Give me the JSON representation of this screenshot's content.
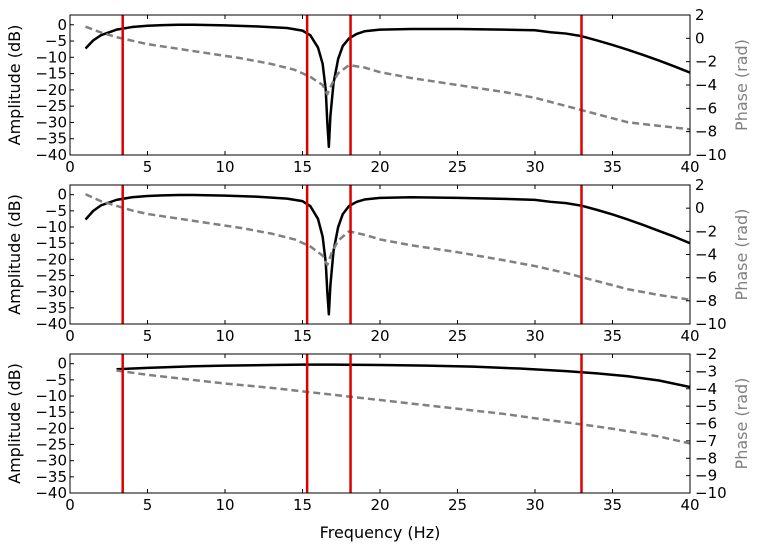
{
  "chart_data": [
    {
      "type": "line",
      "title": "",
      "xlabel": "",
      "ylabel": "Amplitude (dB)",
      "y2label": "Phase (rad)",
      "xlim": [
        0,
        40
      ],
      "ylim": [
        -40,
        3
      ],
      "y2lim": [
        -10,
        2
      ],
      "xticks": [
        0,
        5,
        10,
        15,
        20,
        25,
        30,
        35,
        40
      ],
      "xtick_labels": [
        "0",
        "5",
        "10",
        "15",
        "20",
        "25",
        "30",
        "35",
        "40"
      ],
      "yticks": [
        -40,
        -35,
        -30,
        -25,
        -20,
        -15,
        -10,
        -5,
        0
      ],
      "ytick_labels": [
        "−40",
        "−35",
        "−30",
        "−25",
        "−20",
        "−15",
        "−10",
        "−5",
        "0"
      ],
      "y2ticks": [
        -10,
        -8,
        -6,
        -4,
        -2,
        0,
        2
      ],
      "y2tick_labels": [
        "−10",
        "−8",
        "−6",
        "−4",
        "−2",
        "0",
        "2"
      ],
      "vlines": [
        3.4,
        15.3,
        18.1,
        33.0
      ],
      "colors": {
        "amplitude": "#000000",
        "phase": "#808080",
        "vlines": "#dd0000"
      },
      "series": [
        {
          "role": "amplitude",
          "axis": "left",
          "style": "solid",
          "x": [
            1.0,
            1.5,
            2.0,
            3.0,
            4.0,
            5.0,
            6.0,
            7.0,
            8.0,
            10.0,
            12.0,
            14.0,
            15.0,
            15.5,
            16.0,
            16.3,
            16.5,
            16.6,
            16.7,
            16.8,
            17.0,
            17.3,
            17.6,
            18.0,
            18.5,
            19.0,
            20.0,
            22.0,
            25.0,
            28.0,
            30.0,
            31.0,
            32.0,
            33.0,
            34.0,
            35.0,
            36.0,
            37.0,
            38.0,
            39.0,
            40.0
          ],
          "y": [
            -7.3,
            -4.8,
            -3.2,
            -1.5,
            -0.7,
            -0.3,
            -0.1,
            0.0,
            0.0,
            -0.2,
            -0.5,
            -1.0,
            -1.8,
            -3.2,
            -7.0,
            -12.0,
            -20.0,
            -30.0,
            -37.5,
            -28.0,
            -18.0,
            -10.5,
            -6.5,
            -4.2,
            -2.8,
            -2.0,
            -1.5,
            -1.3,
            -1.3,
            -1.5,
            -1.7,
            -2.3,
            -2.7,
            -3.5,
            -4.8,
            -6.2,
            -7.7,
            -9.3,
            -11.0,
            -12.8,
            -14.7
          ]
        },
        {
          "role": "phase",
          "axis": "right",
          "style": "dashed",
          "x": [
            1.0,
            2.0,
            3.0,
            4.0,
            5.0,
            7.0,
            9.0,
            11.0,
            13.0,
            14.5,
            15.5,
            16.3,
            16.6,
            16.9,
            17.3,
            18.0,
            19.0,
            20.0,
            22.0,
            25.0,
            28.0,
            30.0,
            32.0,
            34.0,
            36.0,
            38.0,
            40.0
          ],
          "y": [
            1.0,
            0.5,
            0.1,
            -0.2,
            -0.5,
            -0.9,
            -1.3,
            -1.7,
            -2.2,
            -2.7,
            -3.3,
            -4.0,
            -4.8,
            -3.9,
            -3.0,
            -2.3,
            -2.5,
            -2.9,
            -3.4,
            -4.0,
            -4.6,
            -5.1,
            -5.8,
            -6.5,
            -7.2,
            -7.5,
            -7.8
          ]
        }
      ]
    },
    {
      "type": "line",
      "title": "",
      "xlabel": "",
      "ylabel": "Amplitude (dB)",
      "y2label": "Phase (rad)",
      "xlim": [
        0,
        40
      ],
      "ylim": [
        -40,
        3
      ],
      "y2lim": [
        -10,
        2
      ],
      "xticks": [
        0,
        5,
        10,
        15,
        20,
        25,
        30,
        35,
        40
      ],
      "xtick_labels": [
        "0",
        "5",
        "10",
        "15",
        "20",
        "25",
        "30",
        "35",
        "40"
      ],
      "yticks": [
        -40,
        -35,
        -30,
        -25,
        -20,
        -15,
        -10,
        -5,
        0
      ],
      "ytick_labels": [
        "−40",
        "−35",
        "−30",
        "−25",
        "−20",
        "−15",
        "−10",
        "−5",
        "0"
      ],
      "y2ticks": [
        -10,
        -8,
        -6,
        -4,
        -2,
        0,
        2
      ],
      "y2tick_labels": [
        "−10",
        "−8",
        "−6",
        "−4",
        "−2",
        "0",
        "2"
      ],
      "vlines": [
        3.4,
        15.3,
        18.1,
        33.0
      ],
      "colors": {
        "amplitude": "#000000",
        "phase": "#808080",
        "vlines": "#dd0000"
      },
      "series": [
        {
          "role": "amplitude",
          "axis": "left",
          "style": "solid",
          "x": [
            1.0,
            1.5,
            2.0,
            3.0,
            4.0,
            5.0,
            6.0,
            7.0,
            8.0,
            10.0,
            12.0,
            14.0,
            15.0,
            15.5,
            16.0,
            16.3,
            16.5,
            16.6,
            16.7,
            16.8,
            17.0,
            17.3,
            17.6,
            18.0,
            18.5,
            19.0,
            20.0,
            22.0,
            25.0,
            28.0,
            30.0,
            31.0,
            32.0,
            33.0,
            34.0,
            35.0,
            36.0,
            37.0,
            38.0,
            39.0,
            40.0
          ],
          "y": [
            -7.7,
            -5.0,
            -3.3,
            -1.6,
            -0.8,
            -0.4,
            -0.2,
            -0.1,
            -0.1,
            -0.3,
            -0.6,
            -1.2,
            -2.0,
            -3.5,
            -7.5,
            -13.0,
            -21.0,
            -30.0,
            -37.0,
            -28.0,
            -17.5,
            -10.0,
            -6.0,
            -3.5,
            -2.2,
            -1.5,
            -1.0,
            -0.8,
            -1.0,
            -1.3,
            -1.6,
            -2.2,
            -2.6,
            -3.4,
            -4.7,
            -6.1,
            -7.7,
            -9.4,
            -11.2,
            -13.0,
            -15.0
          ]
        },
        {
          "role": "phase",
          "axis": "right",
          "style": "dashed",
          "x": [
            1.0,
            2.0,
            3.0,
            4.0,
            5.0,
            7.0,
            9.0,
            11.0,
            13.0,
            14.5,
            15.5,
            16.3,
            16.6,
            16.9,
            17.3,
            18.0,
            19.0,
            20.0,
            22.0,
            25.0,
            28.0,
            30.0,
            32.0,
            34.0,
            36.0,
            38.0,
            40.0
          ],
          "y": [
            1.2,
            0.6,
            0.2,
            -0.2,
            -0.5,
            -0.9,
            -1.3,
            -1.7,
            -2.2,
            -2.7,
            -3.3,
            -4.1,
            -4.9,
            -3.8,
            -2.8,
            -2.0,
            -2.3,
            -2.7,
            -3.2,
            -3.8,
            -4.5,
            -5.0,
            -5.6,
            -6.3,
            -7.0,
            -7.5,
            -7.9
          ]
        }
      ]
    },
    {
      "type": "line",
      "title": "",
      "xlabel": "Frequency (Hz)",
      "ylabel": "Amplitude (dB)",
      "y2label": "Phase (rad)",
      "xlim": [
        0,
        40
      ],
      "ylim": [
        -40,
        3
      ],
      "y2lim": [
        -10,
        -2
      ],
      "xticks": [
        0,
        5,
        10,
        15,
        20,
        25,
        30,
        35,
        40
      ],
      "xtick_labels": [
        "0",
        "5",
        "10",
        "15",
        "20",
        "25",
        "30",
        "35",
        "40"
      ],
      "yticks": [
        -40,
        -35,
        -30,
        -25,
        -20,
        -15,
        -10,
        -5,
        0
      ],
      "ytick_labels": [
        "−40",
        "−35",
        "−30",
        "−25",
        "−20",
        "−15",
        "−10",
        "−5",
        "0"
      ],
      "y2ticks": [
        -10,
        -9,
        -8,
        -7,
        -6,
        -5,
        -4,
        -3,
        -2
      ],
      "y2tick_labels": [
        "−10",
        "−9",
        "−8",
        "−7",
        "−6",
        "−5",
        "−4",
        "−3",
        "−2"
      ],
      "vlines": [
        3.4,
        15.3,
        18.1,
        33.0
      ],
      "colors": {
        "amplitude": "#000000",
        "phase": "#808080",
        "vlines": "#dd0000"
      },
      "series": [
        {
          "role": "amplitude",
          "axis": "left",
          "style": "solid",
          "x": [
            3.0,
            5.0,
            8.0,
            10.0,
            13.0,
            15.0,
            17.0,
            20.0,
            23.0,
            26.0,
            29.0,
            32.0,
            34.0,
            36.0,
            38.0,
            40.0
          ],
          "y": [
            -1.7,
            -1.3,
            -0.8,
            -0.6,
            -0.4,
            -0.3,
            -0.3,
            -0.4,
            -0.6,
            -0.9,
            -1.5,
            -2.3,
            -3.0,
            -3.9,
            -5.2,
            -7.2
          ]
        },
        {
          "role": "phase",
          "axis": "right",
          "style": "dashed",
          "x": [
            3.0,
            5.0,
            8.0,
            10.0,
            13.0,
            15.0,
            18.0,
            20.0,
            23.0,
            25.0,
            28.0,
            30.0,
            33.0,
            35.0,
            38.0,
            40.0
          ],
          "y": [
            -2.95,
            -3.2,
            -3.5,
            -3.7,
            -3.95,
            -4.15,
            -4.45,
            -4.65,
            -4.95,
            -5.15,
            -5.45,
            -5.7,
            -6.05,
            -6.3,
            -6.75,
            -7.15
          ]
        }
      ]
    }
  ]
}
